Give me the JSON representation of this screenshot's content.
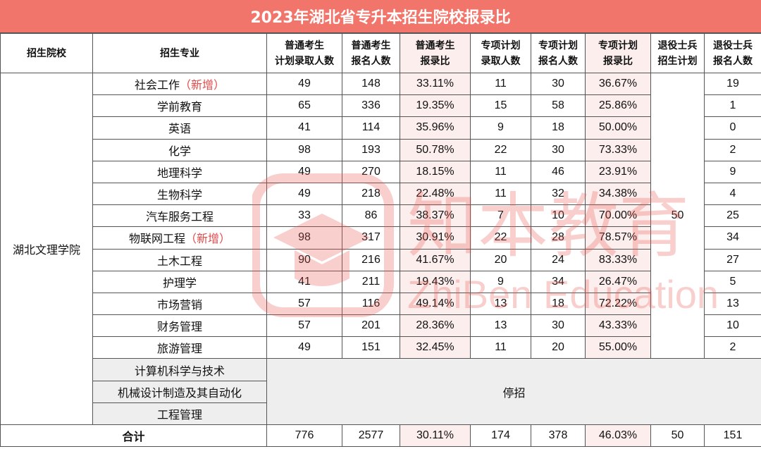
{
  "title": "2023年湖北省专升本招生院校报录比",
  "headers": {
    "school": "招生院校",
    "major": "招生专业",
    "reg_plan_line1": "普通考生",
    "reg_plan_line2": "计划录取人数",
    "reg_apply_line1": "普通考生",
    "reg_apply_line2": "报名人数",
    "reg_ratio_line1": "普通考生",
    "reg_ratio_line2": "报录比",
    "sp_plan_line1": "专项计划",
    "sp_plan_line2": "录取人数",
    "sp_apply_line1": "专项计划",
    "sp_apply_line2": "报名人数",
    "sp_ratio_line1": "专项计划",
    "sp_ratio_line2": "报录比",
    "vet_plan_line1": "退役士兵",
    "vet_plan_line2": "招生计划",
    "vet_apply_line1": "退役士兵",
    "vet_apply_line2": "报名人数"
  },
  "school_name": "湖北文理学院",
  "veteran_plan": "50",
  "rows": [
    {
      "major": "社会工作",
      "tag": "（新增）",
      "reg_plan": "49",
      "reg_apply": "148",
      "reg_ratio": "33.11%",
      "sp_plan": "11",
      "sp_apply": "30",
      "sp_ratio": "36.67%",
      "vet_apply": "19"
    },
    {
      "major": "学前教育",
      "tag": "",
      "reg_plan": "65",
      "reg_apply": "336",
      "reg_ratio": "19.35%",
      "sp_plan": "15",
      "sp_apply": "58",
      "sp_ratio": "25.86%",
      "vet_apply": "1"
    },
    {
      "major": "英语",
      "tag": "",
      "reg_plan": "41",
      "reg_apply": "114",
      "reg_ratio": "35.96%",
      "sp_plan": "9",
      "sp_apply": "18",
      "sp_ratio": "50.00%",
      "vet_apply": "0"
    },
    {
      "major": "化学",
      "tag": "",
      "reg_plan": "98",
      "reg_apply": "193",
      "reg_ratio": "50.78%",
      "sp_plan": "22",
      "sp_apply": "30",
      "sp_ratio": "73.33%",
      "vet_apply": "2"
    },
    {
      "major": "地理科学",
      "tag": "",
      "reg_plan": "49",
      "reg_apply": "270",
      "reg_ratio": "18.15%",
      "sp_plan": "11",
      "sp_apply": "46",
      "sp_ratio": "23.91%",
      "vet_apply": "9"
    },
    {
      "major": "生物科学",
      "tag": "",
      "reg_plan": "49",
      "reg_apply": "218",
      "reg_ratio": "22.48%",
      "sp_plan": "11",
      "sp_apply": "32",
      "sp_ratio": "34.38%",
      "vet_apply": "4"
    },
    {
      "major": "汽车服务工程",
      "tag": "",
      "reg_plan": "33",
      "reg_apply": "86",
      "reg_ratio": "38.37%",
      "sp_plan": "7",
      "sp_apply": "10",
      "sp_ratio": "70.00%",
      "vet_apply": "25"
    },
    {
      "major": "物联网工程",
      "tag": "（新增）",
      "reg_plan": "98",
      "reg_apply": "317",
      "reg_ratio": "30.91%",
      "sp_plan": "22",
      "sp_apply": "28",
      "sp_ratio": "78.57%",
      "vet_apply": "34"
    },
    {
      "major": "土木工程",
      "tag": "",
      "reg_plan": "90",
      "reg_apply": "216",
      "reg_ratio": "41.67%",
      "sp_plan": "20",
      "sp_apply": "24",
      "sp_ratio": "83.33%",
      "vet_apply": "27"
    },
    {
      "major": "护理学",
      "tag": "",
      "reg_plan": "41",
      "reg_apply": "211",
      "reg_ratio": "19.43%",
      "sp_plan": "9",
      "sp_apply": "34",
      "sp_ratio": "26.47%",
      "vet_apply": "5"
    },
    {
      "major": "市场营销",
      "tag": "",
      "reg_plan": "57",
      "reg_apply": "116",
      "reg_ratio": "49.14%",
      "sp_plan": "13",
      "sp_apply": "18",
      "sp_ratio": "72.22%",
      "vet_apply": "13"
    },
    {
      "major": "财务管理",
      "tag": "",
      "reg_plan": "57",
      "reg_apply": "201",
      "reg_ratio": "28.36%",
      "sp_plan": "13",
      "sp_apply": "30",
      "sp_ratio": "43.33%",
      "vet_apply": "10"
    },
    {
      "major": "旅游管理",
      "tag": "",
      "reg_plan": "49",
      "reg_apply": "151",
      "reg_ratio": "32.45%",
      "sp_plan": "11",
      "sp_apply": "20",
      "sp_ratio": "55.00%",
      "vet_apply": "2"
    }
  ],
  "stopped_majors": [
    "计算机科学与技术",
    "机械设计制造及其自动化",
    "工程管理"
  ],
  "stopped_label": "停招",
  "total": {
    "label": "合计",
    "reg_plan": "776",
    "reg_apply": "2577",
    "reg_ratio": "30.11%",
    "sp_plan": "174",
    "sp_apply": "378",
    "sp_ratio": "46.03%",
    "vet_plan": "50",
    "vet_apply": "151"
  },
  "watermark": {
    "brand_cn": "知本教育",
    "brand_en": "ZhiBen Education",
    "icon": "graduation-cap-icon",
    "color": "#e8574d"
  },
  "colors": {
    "title_bg": "#f2756b",
    "ratio_bg": "#fdeeee",
    "stopped_bg": "#eeeeee",
    "new_tag": "#e24a4a"
  }
}
